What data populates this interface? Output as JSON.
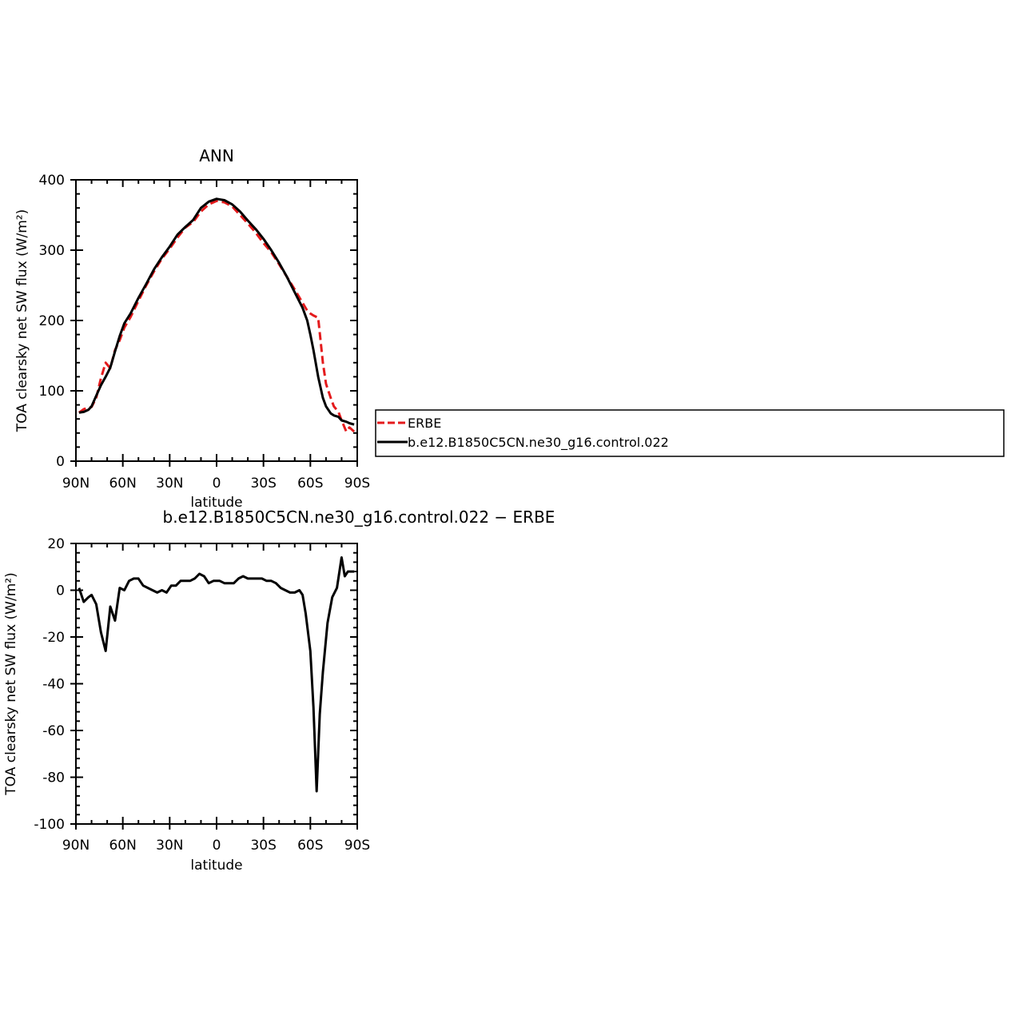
{
  "chart_data": [
    {
      "type": "line",
      "title": "ANN",
      "xlabel": "latitude",
      "ylabel": "TOA clearsky net SW flux (W/m²)",
      "xlim": [
        -90,
        90
      ],
      "ylim": [
        0,
        400
      ],
      "x_ticks": [
        {
          "value": -90,
          "label": "90N"
        },
        {
          "value": -60,
          "label": "60N"
        },
        {
          "value": -30,
          "label": "30N"
        },
        {
          "value": 0,
          "label": "0"
        },
        {
          "value": 30,
          "label": "30S"
        },
        {
          "value": 60,
          "label": "60S"
        },
        {
          "value": 90,
          "label": "90S"
        }
      ],
      "y_ticks": [
        0,
        100,
        200,
        300,
        400
      ],
      "grid": false,
      "legend": {
        "placement": "right",
        "entries": [
          {
            "name": "ERBE",
            "color": "#e41a1c",
            "style": "dashed"
          },
          {
            "name": "b.e12.B1850C5CN.ne30_g16.control.022",
            "color": "#000000",
            "style": "solid"
          }
        ]
      },
      "series": [
        {
          "name": "ERBE",
          "color": "#e41a1c",
          "dash": "dashed",
          "x": [
            -88,
            -85,
            -80,
            -77,
            -74,
            -71,
            -68,
            -65,
            -62,
            -59,
            -55,
            -50,
            -45,
            -40,
            -35,
            -30,
            -25,
            -20,
            -15,
            -10,
            -5,
            0,
            5,
            10,
            15,
            20,
            25,
            30,
            35,
            40,
            45,
            50,
            55,
            58,
            60,
            62,
            65,
            68,
            70,
            73,
            75,
            78,
            80,
            83,
            85,
            88
          ],
          "y": [
            69,
            74,
            77,
            90,
            118,
            140,
            132,
            158,
            172,
            190,
            205,
            228,
            250,
            270,
            288,
            302,
            318,
            332,
            340,
            355,
            365,
            370,
            368,
            362,
            350,
            338,
            325,
            310,
            297,
            280,
            262,
            244,
            225,
            214,
            210,
            207,
            204,
            140,
            110,
            90,
            78,
            70,
            58,
            42,
            48,
            42
          ]
        },
        {
          "name": "b.e12.B1850C5CN.ne30_g16.control.022",
          "color": "#000000",
          "dash": "solid",
          "x": [
            -88,
            -85,
            -82,
            -80,
            -77,
            -74,
            -71,
            -68,
            -65,
            -62,
            -59,
            -55,
            -50,
            -45,
            -40,
            -35,
            -30,
            -25,
            -20,
            -15,
            -10,
            -5,
            0,
            5,
            10,
            15,
            20,
            25,
            30,
            35,
            40,
            45,
            50,
            55,
            58,
            60,
            62,
            65,
            68,
            70,
            73,
            75,
            78,
            80,
            83,
            85,
            88
          ],
          "y": [
            69,
            70,
            73,
            78,
            93,
            108,
            120,
            133,
            156,
            178,
            196,
            210,
            232,
            252,
            273,
            290,
            305,
            322,
            333,
            343,
            360,
            369,
            373,
            371,
            365,
            355,
            342,
            330,
            316,
            300,
            282,
            262,
            240,
            218,
            200,
            180,
            158,
            120,
            90,
            78,
            68,
            65,
            63,
            58,
            56,
            54,
            52
          ]
        }
      ]
    },
    {
      "type": "line",
      "title": "b.e12.B1850C5CN.ne30_g16.control.022 − ERBE",
      "xlabel": "latitude",
      "ylabel": "TOA clearsky net SW flux (W/m²)",
      "xlim": [
        -90,
        90
      ],
      "ylim": [
        -100,
        20
      ],
      "x_ticks": [
        {
          "value": -90,
          "label": "90N"
        },
        {
          "value": -60,
          "label": "60N"
        },
        {
          "value": -30,
          "label": "30N"
        },
        {
          "value": 0,
          "label": "0"
        },
        {
          "value": 30,
          "label": "30S"
        },
        {
          "value": 60,
          "label": "60S"
        },
        {
          "value": 90,
          "label": "90S"
        }
      ],
      "y_ticks": [
        -100,
        -80,
        -60,
        -40,
        -20,
        0,
        20
      ],
      "grid": false,
      "series": [
        {
          "color": "#000000",
          "x": [
            -88,
            -85,
            -82,
            -80,
            -77,
            -74,
            -71,
            -68,
            -65,
            -62,
            -59,
            -56,
            -53,
            -50,
            -47,
            -44,
            -41,
            -38,
            -35,
            -32,
            -29,
            -26,
            -23,
            -20,
            -17,
            -14,
            -11,
            -8,
            -5,
            -2,
            0,
            2,
            5,
            8,
            11,
            14,
            17,
            20,
            23,
            26,
            29,
            32,
            35,
            38,
            41,
            44,
            47,
            50,
            53,
            55,
            57,
            60,
            62,
            64,
            66,
            68,
            71,
            74,
            77,
            80,
            82,
            84,
            86,
            88
          ],
          "y": [
            1,
            -5,
            -3,
            -2,
            -6,
            -18,
            -26,
            -7,
            -13,
            1,
            0,
            4,
            5,
            5,
            2,
            1,
            0,
            -1,
            0,
            -1,
            2,
            2,
            4,
            4,
            4,
            5,
            7,
            6,
            3,
            4,
            4,
            4,
            3,
            3,
            3,
            5,
            6,
            5,
            5,
            5,
            5,
            4,
            4,
            3,
            1,
            0,
            -1,
            -1,
            0,
            -2,
            -10,
            -26,
            -50,
            -86,
            -53,
            -35,
            -14,
            -3,
            1,
            14,
            6,
            8,
            8,
            8
          ]
        }
      ]
    }
  ]
}
